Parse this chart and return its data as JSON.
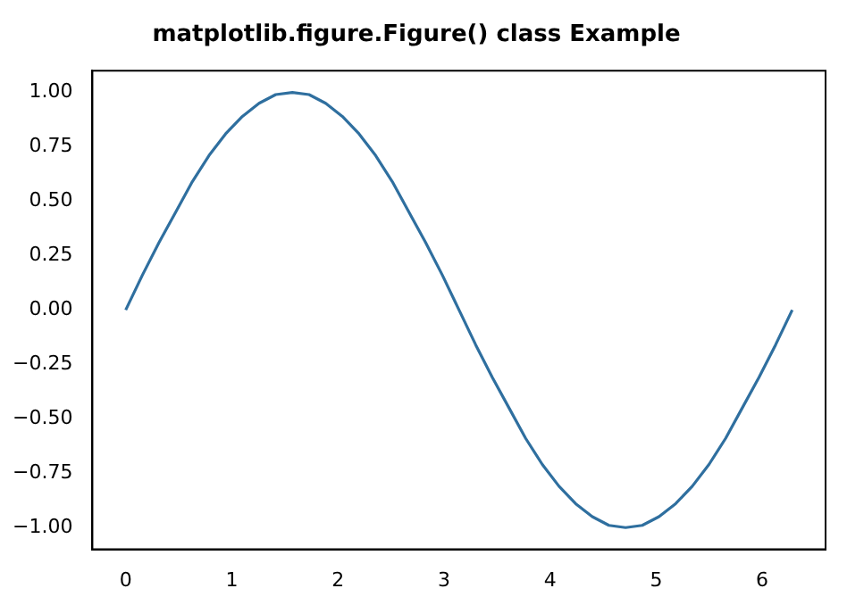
{
  "chart_data": {
    "type": "line",
    "title": "matplotlib.figure.Figure() class Example",
    "x": [
      0,
      0.157,
      0.314,
      0.471,
      0.628,
      0.785,
      0.942,
      1.1,
      1.257,
      1.414,
      1.571,
      1.728,
      1.885,
      2.042,
      2.199,
      2.356,
      2.513,
      2.67,
      2.827,
      2.985,
      3.142,
      3.299,
      3.456,
      3.613,
      3.77,
      3.927,
      4.084,
      4.241,
      4.398,
      4.555,
      4.712,
      4.869,
      5.027,
      5.184,
      5.341,
      5.498,
      5.655,
      5.812,
      5.969,
      6.126,
      6.283
    ],
    "series": [
      {
        "color": "#2f6f9f",
        "values": [
          0,
          0.16,
          0.31,
          0.45,
          0.59,
          0.71,
          0.81,
          0.89,
          0.95,
          0.99,
          1,
          0.99,
          0.95,
          0.89,
          0.81,
          0.71,
          0.59,
          0.45,
          0.31,
          0.16,
          0,
          -0.16,
          -0.31,
          -0.45,
          -0.59,
          -0.71,
          -0.81,
          -0.89,
          -0.95,
          -0.99,
          -1,
          -0.99,
          -0.95,
          -0.89,
          -0.81,
          -0.71,
          -0.59,
          -0.45,
          -0.31,
          -0.16,
          0
        ]
      }
    ],
    "xlim": [
      -0.314,
      6.597
    ],
    "ylim": [
      -1.1,
      1.1
    ],
    "xticks": [
      0,
      1,
      2,
      3,
      4,
      5,
      6
    ],
    "yticks": [
      {
        "value": -1,
        "label": "−1.00"
      },
      {
        "value": -0.75,
        "label": "−0.75"
      },
      {
        "value": -0.5,
        "label": "−0.50"
      },
      {
        "value": -0.25,
        "label": "−0.25"
      },
      {
        "value": 0,
        "label": "0.00"
      },
      {
        "value": 0.25,
        "label": "0.25"
      },
      {
        "value": 0.5,
        "label": "0.50"
      },
      {
        "value": 0.75,
        "label": "0.75"
      },
      {
        "value": 1,
        "label": "1.00"
      }
    ],
    "grid": false,
    "legend": false,
    "marker": "none",
    "line_style": "solid"
  }
}
